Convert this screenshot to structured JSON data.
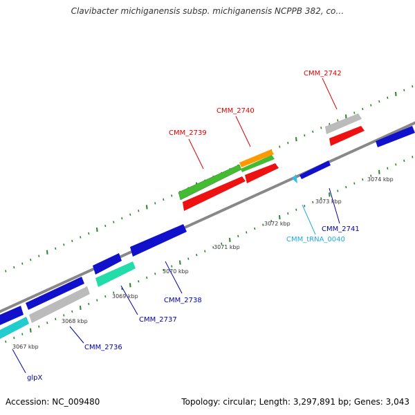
{
  "title": "Clavibacter michiganensis subsp. michiganensis NCPPB 382, co…",
  "footer": {
    "accession": "Accession: NC_009480",
    "topology": "Topology: circular; Length: 3,297,891 bp; Genes: 3,043"
  },
  "scale_labels": [
    "3067 kbp",
    "3068 kbp",
    "3069 kbp",
    "3070 kbp",
    "3071 kbp",
    "3072 kbp",
    "3073 kbp",
    "3074 kbp"
  ],
  "features": [
    {
      "name": "CMM_2739",
      "color": "#dd0000"
    },
    {
      "name": "CMM_2740",
      "color": "#dd0000"
    },
    {
      "name": "CMM_2742",
      "color": "#dd0000"
    },
    {
      "name": "CMM_2741",
      "color": "#0000aa"
    },
    {
      "name": "CMM_tRNA_0040",
      "color": "#22aadd"
    },
    {
      "name": "CMM_2738",
      "color": "#0000aa"
    },
    {
      "name": "CMM_2737",
      "color": "#0000aa"
    },
    {
      "name": "CMM_2736",
      "color": "#0000aa"
    },
    {
      "name": "glpX",
      "color": "#0000aa"
    }
  ],
  "colors": {
    "backbone": "#888888",
    "tick": "#228822",
    "forward_gene_red": "#ee1111",
    "forward_gene_green": "#44bb33",
    "forward_gene_orange": "#ff9900",
    "forward_gene_gray": "#bbbbbb",
    "reverse_gene_blue": "#1111cc",
    "reverse_gene_teal": "#22ddaa",
    "reverse_gene_cyan": "#22cccc"
  }
}
